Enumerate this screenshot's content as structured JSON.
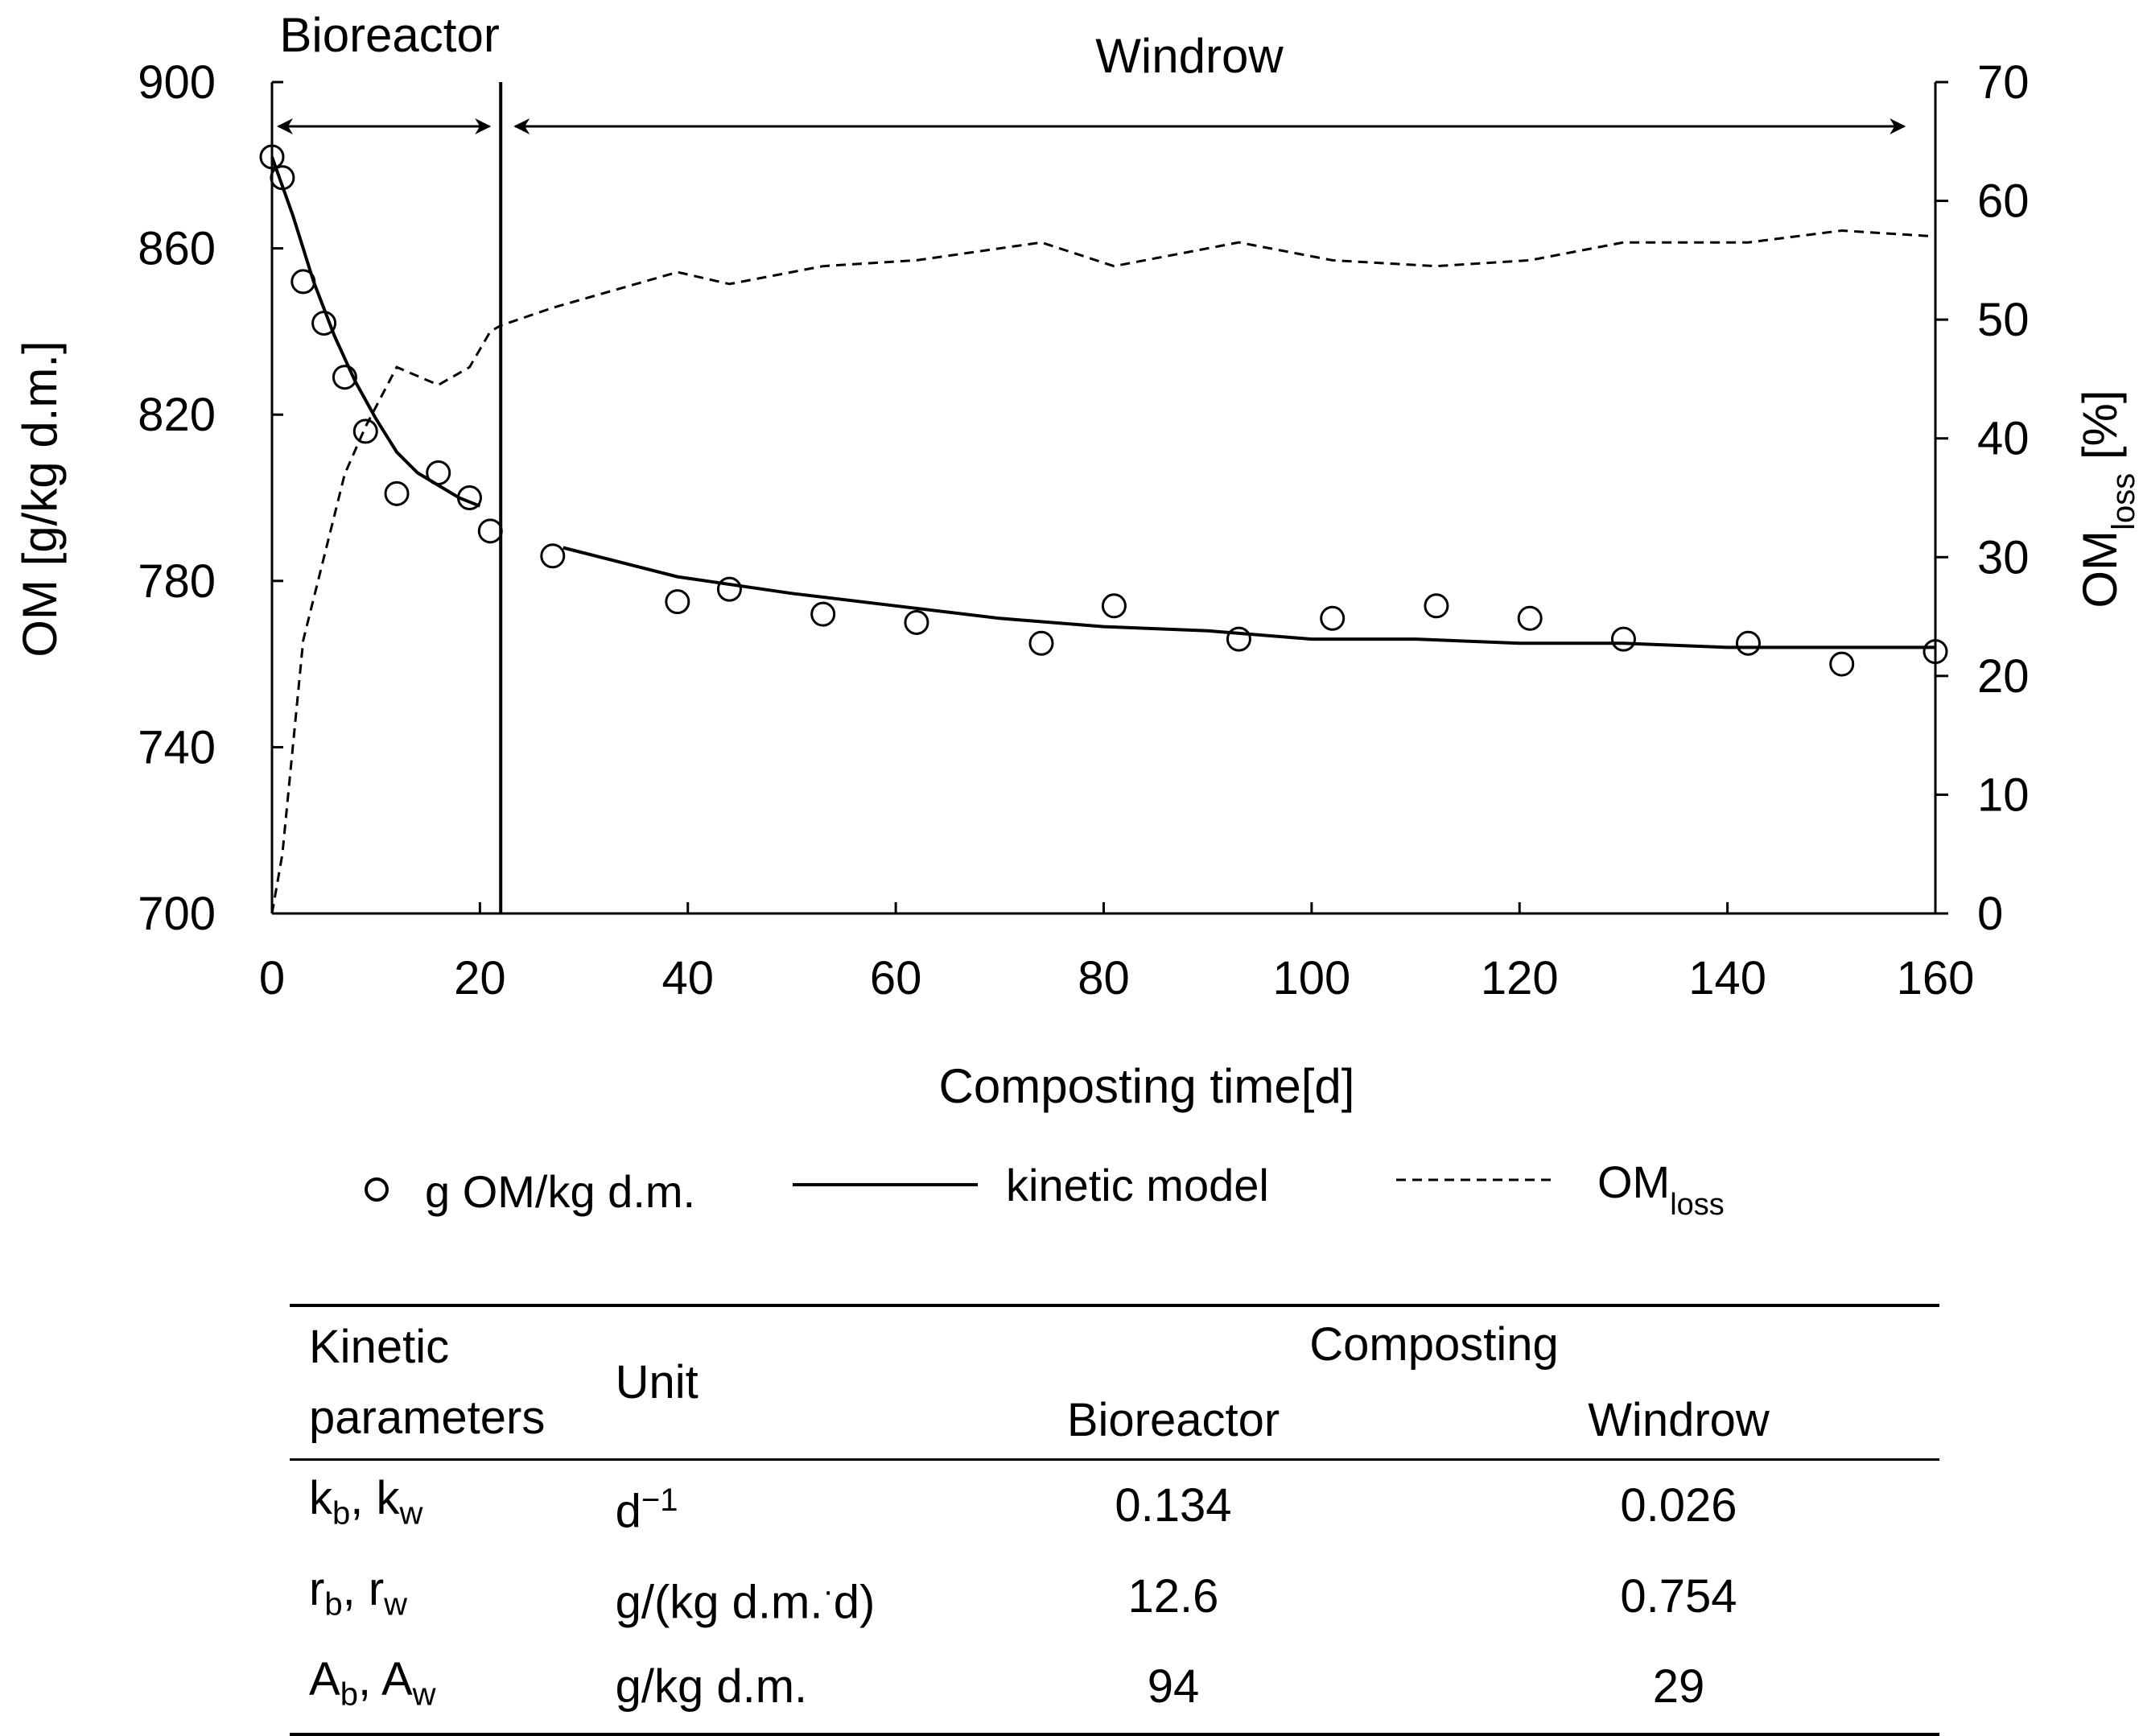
{
  "chart_data": {
    "type": "scatter",
    "xlabel": "Composting time[d]",
    "ylabel_left": "OM [g/kg d.m.]",
    "ylabel_right": "OMloss [%]",
    "ylabel_right_main": "OM",
    "ylabel_right_sub": "loss",
    "ylabel_right_unit": " [%]",
    "xlim": [
      0,
      160
    ],
    "ylim_left": [
      700,
      900
    ],
    "ylim_right": [
      0,
      70
    ],
    "xticks": [
      "0",
      "20",
      "40",
      "60",
      "80",
      "100",
      "120",
      "140",
      "160"
    ],
    "yticks_left": [
      "700",
      "740",
      "780",
      "820",
      "860",
      "900"
    ],
    "yticks_right": [
      "0",
      "10",
      "20",
      "30",
      "40",
      "50",
      "60",
      "70"
    ],
    "phase_boundary_x": 22,
    "phases": [
      {
        "label": "Bioreactor",
        "x_start": 0,
        "x_end": 22
      },
      {
        "label": "Windrow",
        "x_start": 22,
        "x_end": 157
      }
    ],
    "series": [
      {
        "name": "g OM/kg d.m.",
        "kind": "markers",
        "axis": "left",
        "points": [
          [
            0,
            882
          ],
          [
            1,
            877
          ],
          [
            3,
            852
          ],
          [
            5,
            842
          ],
          [
            7,
            829
          ],
          [
            9,
            816
          ],
          [
            12,
            801
          ],
          [
            16,
            806
          ],
          [
            19,
            800
          ],
          [
            21,
            792
          ],
          [
            27,
            786
          ],
          [
            39,
            775
          ],
          [
            44,
            778
          ],
          [
            53,
            772
          ],
          [
            62,
            770
          ],
          [
            74,
            765
          ],
          [
            81,
            774
          ],
          [
            93,
            766
          ],
          [
            102,
            771
          ],
          [
            112,
            774
          ],
          [
            121,
            771
          ],
          [
            130,
            766
          ],
          [
            142,
            765
          ],
          [
            151,
            760
          ],
          [
            160,
            763
          ]
        ]
      },
      {
        "name": "kinetic model",
        "kind": "solid",
        "axis": "left",
        "segments": [
          [
            [
              0,
              882
            ],
            [
              2,
              868
            ],
            [
              4,
              852
            ],
            [
              6,
              839
            ],
            [
              8,
              828
            ],
            [
              10,
              819
            ],
            [
              12,
              811
            ],
            [
              14,
              806
            ],
            [
              16,
              803
            ],
            [
              18,
              800
            ],
            [
              20,
              798
            ]
          ],
          [
            [
              28,
              788
            ],
            [
              39,
              781
            ],
            [
              50,
              777
            ],
            [
              60,
              774
            ],
            [
              70,
              771
            ],
            [
              80,
              769
            ],
            [
              90,
              768
            ],
            [
              100,
              766
            ],
            [
              110,
              766
            ],
            [
              120,
              765
            ],
            [
              130,
              765
            ],
            [
              140,
              764
            ],
            [
              150,
              764
            ],
            [
              160,
              764
            ]
          ]
        ]
      },
      {
        "name": "OMloss",
        "kind": "dashed",
        "axis": "right",
        "points": [
          [
            0,
            0
          ],
          [
            1,
            5
          ],
          [
            3,
            23
          ],
          [
            5,
            30
          ],
          [
            7,
            37
          ],
          [
            9,
            41
          ],
          [
            12,
            46
          ],
          [
            16,
            44.5
          ],
          [
            19,
            46
          ],
          [
            21,
            49
          ],
          [
            22,
            49.5
          ],
          [
            27,
            51
          ],
          [
            39,
            54
          ],
          [
            44,
            53
          ],
          [
            53,
            54.5
          ],
          [
            62,
            55
          ],
          [
            74,
            56.5
          ],
          [
            81,
            54.5
          ],
          [
            93,
            56.5
          ],
          [
            102,
            55
          ],
          [
            112,
            54.5
          ],
          [
            121,
            55
          ],
          [
            130,
            56.5
          ],
          [
            142,
            56.5
          ],
          [
            151,
            57.5
          ],
          [
            160,
            57
          ]
        ]
      }
    ],
    "legend": [
      {
        "label": "g OM/kg d.m.",
        "kind": "marker"
      },
      {
        "label": "kinetic model",
        "kind": "solid"
      },
      {
        "label": "OM",
        "sub": "loss",
        "kind": "dashed"
      }
    ]
  },
  "table": {
    "headers": {
      "param_line1": "Kinetic",
      "param_line2": "parameters",
      "unit": "Unit",
      "composting": "Composting",
      "bioreactor": "Bioreactor",
      "windrow": "Windrow"
    },
    "rows": [
      {
        "p1": "k",
        "p1_sub": "b",
        "p_sep": ", ",
        "p2": "k",
        "p2_sub": "w",
        "unit_main": "d",
        "unit_sup": "−1",
        "unit_rest": "",
        "bioreactor": "0.134",
        "windrow": "0.026"
      },
      {
        "p1": "r",
        "p1_sub": "b",
        "p_sep": ", ",
        "p2": "r",
        "p2_sub": "w",
        "unit_main": "g/(kg d.m.",
        "unit_sup": "·",
        "unit_rest": "d)",
        "bioreactor": "12.6",
        "windrow": "0.754"
      },
      {
        "p1": "A",
        "p1_sub": "b",
        "p_sep": ", ",
        "p2": "A",
        "p2_sub": "w",
        "unit_main": "g/kg d.m.",
        "unit_sup": "",
        "unit_rest": "",
        "bioreactor": "94",
        "windrow": "29"
      }
    ]
  }
}
